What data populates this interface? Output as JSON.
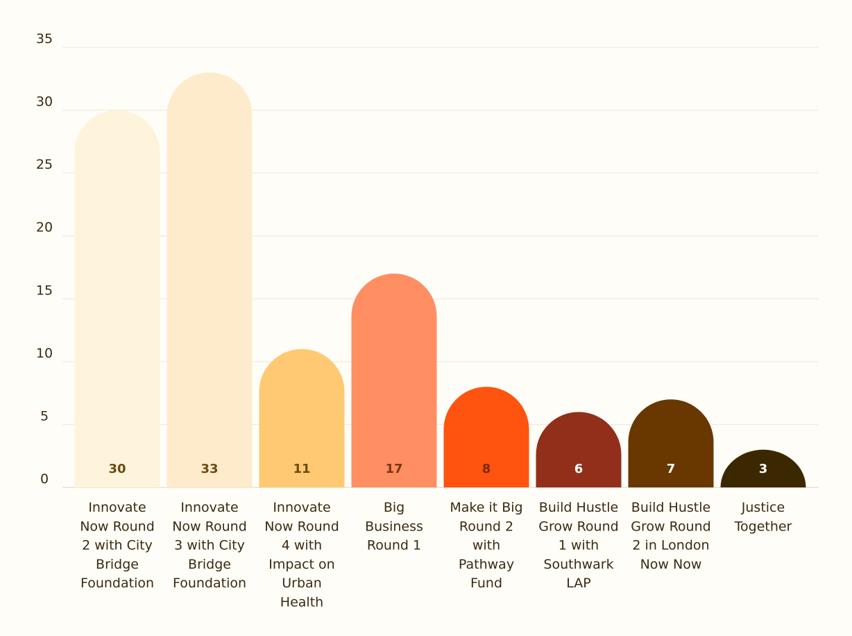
{
  "chart_data": {
    "type": "bar",
    "title": "",
    "xlabel": "",
    "ylabel": "",
    "ylim": [
      0,
      35
    ],
    "yticks": [
      0,
      5,
      10,
      15,
      20,
      25,
      30,
      35
    ],
    "grid": true,
    "legend": "none",
    "categories": [
      "Innovate Now Round 2 with City Bridge Foundation",
      "Innovate Now Round 3 with City Bridge Foundation",
      "Innovate Now Round 4 with Impact on Urban Health",
      "Big Business Round 1",
      "Make it Big Round 2 with Pathway Fund",
      "Build Hustle Grow Round 1 with Southwark LAP",
      "Build Hustle Grow Round 2 in London Now Now",
      "Justice Together"
    ],
    "category_lines": [
      [
        "Innovate",
        "Now Round",
        "2 with City",
        "Bridge",
        "Foundation"
      ],
      [
        "Innovate",
        "Now Round",
        "3 with City",
        "Bridge",
        "Foundation"
      ],
      [
        "Innovate",
        "Now Round",
        "4 with",
        "Impact on",
        "Urban",
        "Health"
      ],
      [
        "Big",
        "Business",
        "Round 1"
      ],
      [
        "Make it Big",
        "Round 2",
        "with",
        "Pathway",
        "Fund"
      ],
      [
        "Build Hustle",
        "Grow Round",
        "1 with",
        "Southwark",
        "LAP"
      ],
      [
        "Build Hustle",
        "Grow Round",
        "2 in London",
        "Now Now"
      ],
      [
        "Justice",
        "Together"
      ]
    ],
    "values": [
      30,
      33,
      11,
      17,
      8,
      6,
      7,
      3
    ],
    "value_labels": [
      "30",
      "33",
      "11",
      "17",
      "8",
      "6",
      "7",
      "3"
    ],
    "colors": [
      "#fef4dc",
      "#feebcc",
      "#fec972",
      "#ff8e62",
      "#fe540f",
      "#922f1b",
      "#683800",
      "#3c2800"
    ],
    "label_colors": [
      "#6b4a10",
      "#6b4a10",
      "#6b4a10",
      "#7a3512",
      "#7a2a08",
      "#ffffff",
      "#ffffff",
      "#ffffff"
    ],
    "text_color": "#3a2a10",
    "grid_color": "#ece7dc",
    "background": "#fffdf8"
  }
}
